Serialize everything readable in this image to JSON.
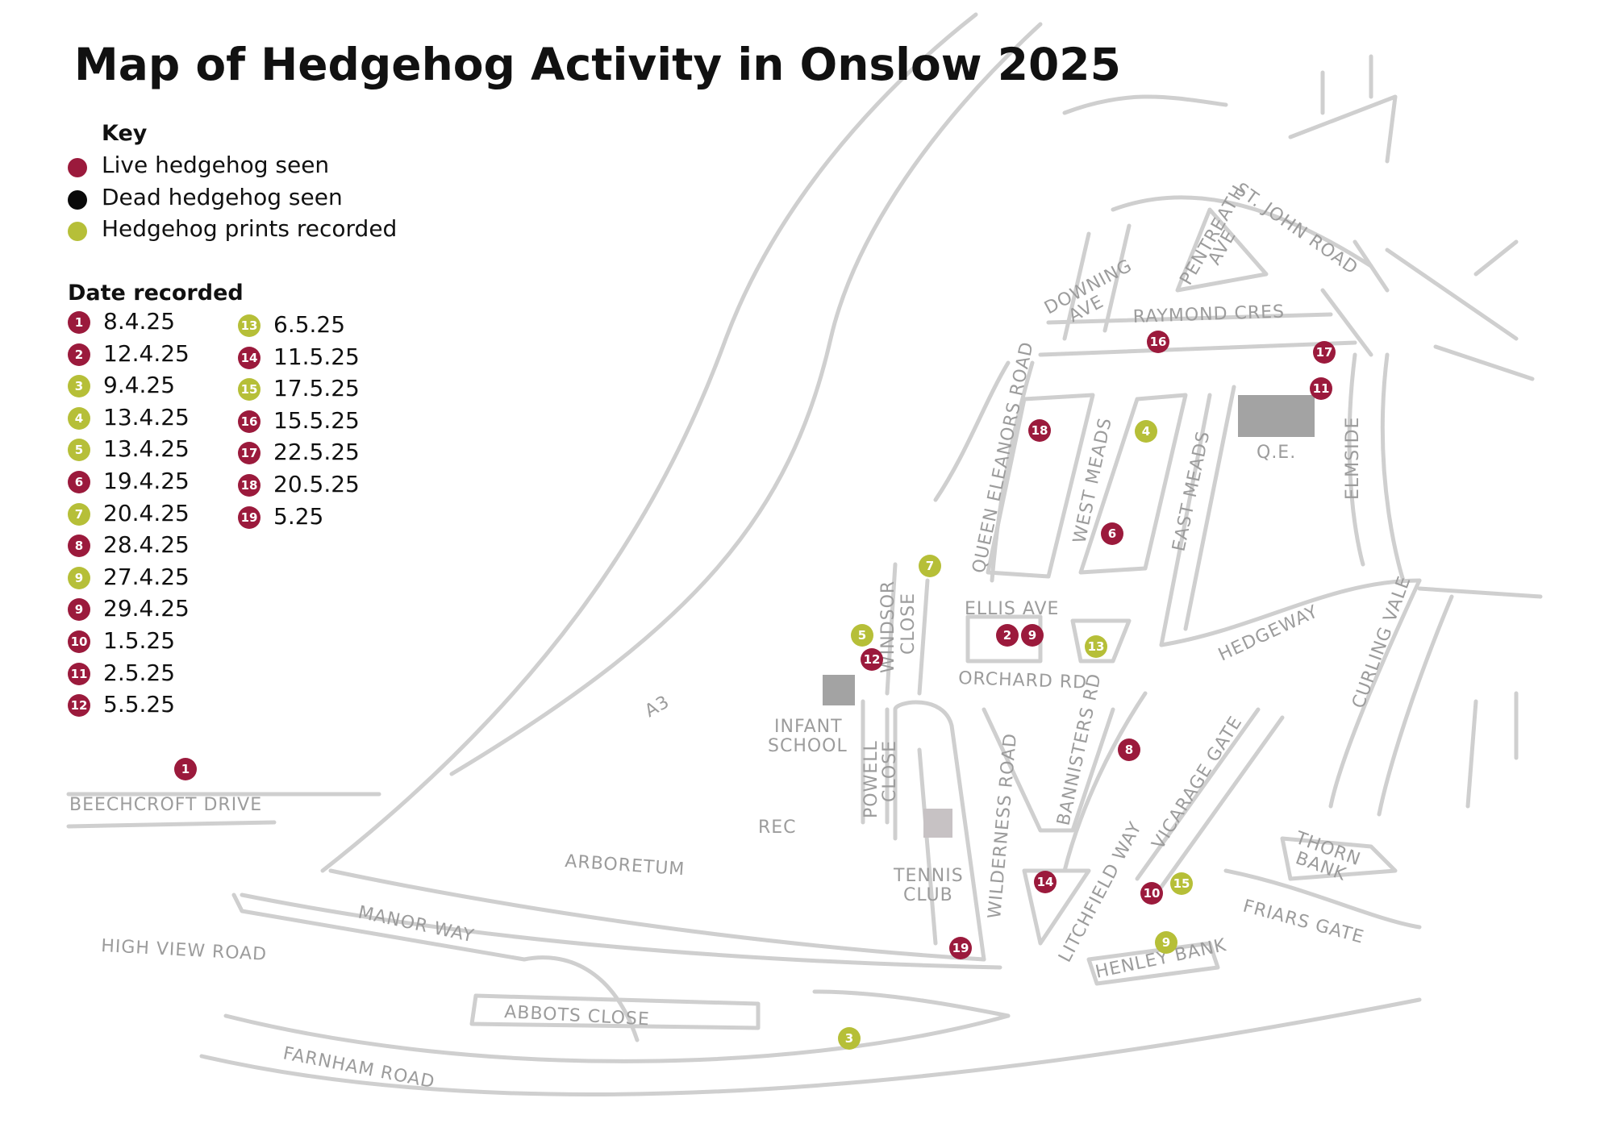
{
  "title": "Map of Hedgehog Activity in Onslow 2025",
  "key": {
    "title": "Key",
    "items": [
      {
        "label": "Live hedgehog seen",
        "color": "#9b1a3c"
      },
      {
        "label": "Dead hedgehog seen",
        "color": "#0a0a0a"
      },
      {
        "label": "Hedgehog prints recorded",
        "color": "#b6bf38"
      }
    ]
  },
  "dates": {
    "title": "Date recorded",
    "items": [
      {
        "n": "1",
        "date": "8.4.25",
        "type": "live"
      },
      {
        "n": "2",
        "date": "12.4.25",
        "type": "live"
      },
      {
        "n": "3",
        "date": "9.4.25",
        "type": "prints"
      },
      {
        "n": "4",
        "date": "13.4.25",
        "type": "prints"
      },
      {
        "n": "5",
        "date": "13.4.25",
        "type": "prints"
      },
      {
        "n": "6",
        "date": "19.4.25",
        "type": "live"
      },
      {
        "n": "7",
        "date": "20.4.25",
        "type": "prints"
      },
      {
        "n": "8",
        "date": "28.4.25",
        "type": "live"
      },
      {
        "n": "9",
        "date": "27.4.25",
        "type": "prints"
      },
      {
        "n": "9",
        "date": "29.4.25",
        "type": "live"
      },
      {
        "n": "10",
        "date": "1.5.25",
        "type": "live"
      },
      {
        "n": "11",
        "date": "2.5.25",
        "type": "live"
      },
      {
        "n": "12",
        "date": "5.5.25",
        "type": "live"
      },
      {
        "n": "13",
        "date": "6.5.25",
        "type": "prints"
      },
      {
        "n": "14",
        "date": "11.5.25",
        "type": "live"
      },
      {
        "n": "15",
        "date": "17.5.25",
        "type": "prints"
      },
      {
        "n": "16",
        "date": "15.5.25",
        "type": "live"
      },
      {
        "n": "17",
        "date": "22.5.25",
        "type": "live"
      },
      {
        "n": "18",
        "date": "20.5.25",
        "type": "live"
      },
      {
        "n": "19",
        "date": "5.25",
        "type": "live"
      }
    ]
  },
  "roads": {
    "beechcroft": "BEECHCROFT DRIVE",
    "a3": "A3",
    "arboretum": "ARBORETUM",
    "rec": "REC",
    "manor_way": "MANOR WAY",
    "high_view": "HIGH VIEW ROAD",
    "abbots": "ABBOTS CLOSE",
    "farnham": "FARNHAM ROAD",
    "infant1": "INFANT",
    "infant2": "SCHOOL",
    "powell1": "POWELL",
    "powell2": "CLOSE",
    "windsor1": "WINDSOR",
    "windsor2": "CLOSE",
    "tennis1": "TENNIS",
    "tennis2": "CLUB",
    "wilderness": "WILDERNESS ROAD",
    "ellis": "ELLIS AVE",
    "orchard": "ORCHARD RD",
    "queen_eleanors": "QUEEN ELEANORS ROAD",
    "west_meads": "WEST MEADS",
    "east_meads": "EAST MEADS",
    "qe": "Q.E.",
    "elmside": "ELMSIDE",
    "hedgeway": "HEDGEWAY",
    "curling": "CURLING VALE",
    "vicarage": "VICARAGE GATE",
    "bannisters": "BANNISTERS RD",
    "litchfield": "LITCHFIELD WAY",
    "thorn1": "THORN",
    "thorn2": "BANK",
    "friars": "FRIARS GATE",
    "henley": "HENLEY BANK",
    "raymond": "RAYMOND CRES",
    "downing1": "DOWNING",
    "downing2": "AVE",
    "pentreath1": "PENTREATH",
    "pentreath2": "AVE",
    "st_john": "ST. JOHN ROAD"
  },
  "markers": [
    {
      "n": "1",
      "type": "live"
    },
    {
      "n": "2",
      "type": "live"
    },
    {
      "n": "9",
      "type": "live"
    },
    {
      "n": "3",
      "type": "prints"
    },
    {
      "n": "4",
      "type": "prints"
    },
    {
      "n": "5",
      "type": "prints"
    },
    {
      "n": "6",
      "type": "live"
    },
    {
      "n": "7",
      "type": "prints"
    },
    {
      "n": "8",
      "type": "live"
    },
    {
      "n": "9",
      "type": "prints"
    },
    {
      "n": "10",
      "type": "live"
    },
    {
      "n": "11",
      "type": "live"
    },
    {
      "n": "12",
      "type": "live"
    },
    {
      "n": "13",
      "type": "prints"
    },
    {
      "n": "14",
      "type": "live"
    },
    {
      "n": "15",
      "type": "prints"
    },
    {
      "n": "16",
      "type": "live"
    },
    {
      "n": "17",
      "type": "live"
    },
    {
      "n": "18",
      "type": "live"
    },
    {
      "n": "19",
      "type": "live"
    }
  ]
}
